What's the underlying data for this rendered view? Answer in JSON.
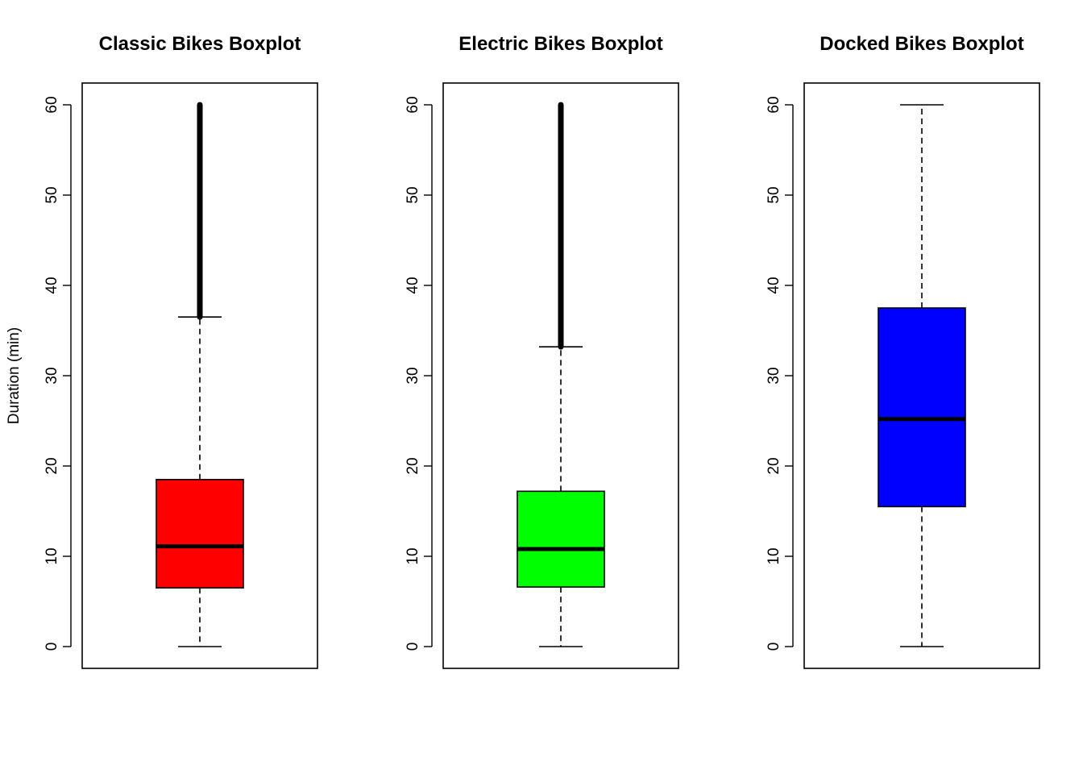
{
  "figure": {
    "y_axis_label": "Duration (min)"
  },
  "chart_data": [
    {
      "type": "boxplot",
      "title": "Classic Bikes Boxplot",
      "ylabel": "Duration (min)",
      "ylim": [
        0,
        60
      ],
      "yticks": [
        "0",
        "10",
        "20",
        "30",
        "40",
        "50",
        "60"
      ],
      "box_color": "#ff0000",
      "stats": {
        "min": 0,
        "q1": 6.5,
        "median": 11.1,
        "q3": 18.5,
        "whisker_high": 36.5
      },
      "outliers": {
        "from": 36.5,
        "to": 60,
        "dense": true
      }
    },
    {
      "type": "boxplot",
      "title": "Electric Bikes Boxplot",
      "ylabel": "",
      "ylim": [
        0,
        60
      ],
      "yticks": [
        "0",
        "10",
        "20",
        "30",
        "40",
        "50",
        "60"
      ],
      "box_color": "#00ff00",
      "stats": {
        "min": 0,
        "q1": 6.6,
        "median": 10.8,
        "q3": 17.2,
        "whisker_high": 33.2
      },
      "outliers": {
        "from": 33.2,
        "to": 60,
        "dense": true
      }
    },
    {
      "type": "boxplot",
      "title": "Docked Bikes Boxplot",
      "ylabel": "",
      "ylim": [
        0,
        60
      ],
      "yticks": [
        "0",
        "10",
        "20",
        "30",
        "40",
        "50",
        "60"
      ],
      "box_color": "#0000ff",
      "stats": {
        "min": 0,
        "q1": 15.5,
        "median": 25.2,
        "q3": 37.5,
        "whisker_high": 60
      },
      "outliers": null
    }
  ]
}
